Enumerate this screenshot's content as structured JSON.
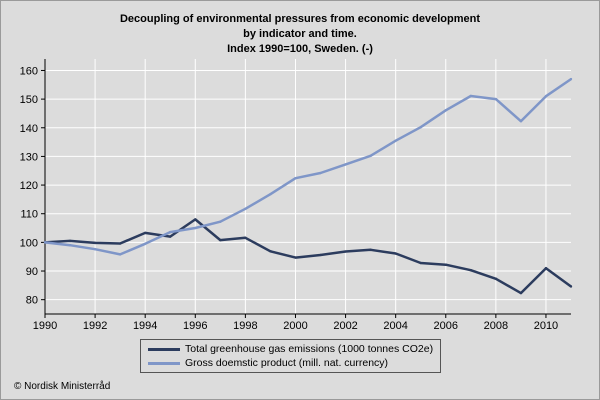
{
  "chart_data": {
    "type": "line",
    "title": [
      "Decoupling of environmental pressures from economic development",
      "by indicator and time.",
      "Index 1990=100, Sweden. (-)"
    ],
    "x": [
      1990,
      1991,
      1992,
      1993,
      1994,
      1995,
      1996,
      1997,
      1998,
      1999,
      2000,
      2001,
      2002,
      2003,
      2004,
      2005,
      2006,
      2007,
      2008,
      2009,
      2010,
      2011
    ],
    "x_ticks": [
      "1990",
      "1992",
      "1994",
      "1996",
      "1998",
      "2000",
      "2002",
      "2004",
      "2006",
      "2008",
      "2010"
    ],
    "xlim": [
      1990,
      2011
    ],
    "ylim": [
      75,
      164
    ],
    "y_ticks": [
      "80",
      "90",
      "100",
      "110",
      "120",
      "130",
      "140",
      "150",
      "160"
    ],
    "grid": true,
    "legend_position": "bottom-center",
    "series": [
      {
        "name": "Total greenhouse gas emissions (1000 tonnes CO2e)",
        "color": "#2c3c5e",
        "values": [
          100,
          100.5,
          99.8,
          99.6,
          103.3,
          102,
          108,
          100.8,
          101.6,
          96.9,
          94.7,
          95.6,
          96.8,
          97.4,
          96.1,
          92.8,
          92.2,
          90.3,
          87.3,
          82.3,
          91,
          84.6
        ]
      },
      {
        "name": "Gross doemstic product (mill. nat. currency)",
        "color": "#7f96c8",
        "values": [
          100,
          99,
          97.6,
          95.8,
          99.5,
          103.6,
          105,
          107.2,
          111.7,
          116.8,
          122.4,
          124.2,
          127.2,
          130.2,
          135.5,
          140.2,
          146.1,
          151.1,
          150,
          142.3,
          151,
          157
        ]
      }
    ]
  },
  "credit": "© Nordisk Ministerråd"
}
